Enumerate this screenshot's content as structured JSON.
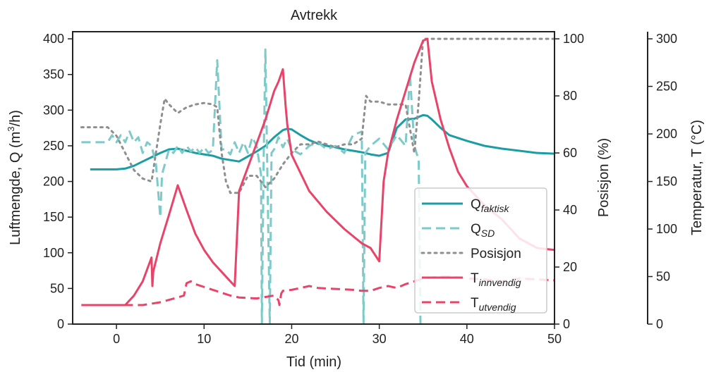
{
  "chart_data": {
    "type": "line",
    "title": "Avtrekk",
    "xlabel": "Tid (min)",
    "xlim": [
      -5,
      50
    ],
    "x_ticks": [
      0,
      10,
      20,
      30,
      40,
      50
    ],
    "axes": {
      "left": {
        "label_parts": [
          "Luftmengde, Q (m",
          "3",
          "/h)"
        ],
        "ylim": [
          0,
          410
        ],
        "ticks": [
          0,
          50,
          100,
          150,
          200,
          250,
          300,
          350,
          400
        ],
        "color": "#7ecac9"
      },
      "right1": {
        "label": "Posisjon (%)",
        "ylim": [
          0,
          102.5
        ],
        "ticks": [
          0,
          20,
          40,
          60,
          80,
          100
        ],
        "color": "#8f8f8f"
      },
      "right2": {
        "label": "Temperatur, T (°C)",
        "ylim": [
          0,
          307.5
        ],
        "ticks": [
          0,
          50,
          100,
          150,
          200,
          250,
          300
        ],
        "color": "#e8446a"
      }
    },
    "series": [
      {
        "name": "Q_faktisk",
        "label_main": "Q",
        "label_sub": "faktisk",
        "axis": "left",
        "color": "#1a9ea3",
        "style": "solid",
        "points": [
          [
            -3,
            217
          ],
          [
            0,
            217
          ],
          [
            1,
            218
          ],
          [
            2,
            222
          ],
          [
            3,
            228
          ],
          [
            4,
            234
          ],
          [
            5,
            240
          ],
          [
            6,
            245
          ],
          [
            7,
            246
          ],
          [
            8,
            243
          ],
          [
            9,
            240
          ],
          [
            10,
            238
          ],
          [
            11,
            236
          ],
          [
            12,
            232
          ],
          [
            13,
            230
          ],
          [
            14,
            228
          ],
          [
            15,
            235
          ],
          [
            16,
            242
          ],
          [
            17,
            250
          ],
          [
            18,
            262
          ],
          [
            19,
            272
          ],
          [
            19.5,
            274
          ],
          [
            20,
            273
          ],
          [
            21,
            265
          ],
          [
            22,
            258
          ],
          [
            23,
            253
          ],
          [
            24,
            250
          ],
          [
            25,
            248
          ],
          [
            26,
            245
          ],
          [
            27,
            243
          ],
          [
            28,
            241
          ],
          [
            29,
            238
          ],
          [
            30,
            236
          ],
          [
            31,
            240
          ],
          [
            32,
            275
          ],
          [
            33,
            287
          ],
          [
            34,
            288
          ],
          [
            35,
            293
          ],
          [
            35.5,
            292
          ],
          [
            36,
            287
          ],
          [
            37,
            275
          ],
          [
            38,
            265
          ],
          [
            40,
            257
          ],
          [
            42,
            250
          ],
          [
            44,
            246
          ],
          [
            46,
            243
          ],
          [
            48,
            240
          ],
          [
            50,
            239
          ]
        ]
      },
      {
        "name": "Q_SD",
        "label_main": "Q",
        "label_sub": "SD",
        "axis": "left",
        "color": "#7ecac9",
        "style": "dashed",
        "points": [
          [
            -4,
            255
          ],
          [
            -1,
            255
          ],
          [
            -0.5,
            265
          ],
          [
            0,
            255
          ],
          [
            0.5,
            265
          ],
          [
            1,
            255
          ],
          [
            1.5,
            270
          ],
          [
            2,
            255
          ],
          [
            2.5,
            262
          ],
          [
            3,
            240
          ],
          [
            3.5,
            255
          ],
          [
            4,
            250
          ],
          [
            4.5,
            225
          ],
          [
            5,
            150
          ],
          [
            5.2,
            210
          ],
          [
            6,
            245
          ],
          [
            6.5,
            240
          ],
          [
            7,
            250
          ],
          [
            7.5,
            240
          ],
          [
            8,
            250
          ],
          [
            8.5,
            242
          ],
          [
            9,
            248
          ],
          [
            9.5,
            240
          ],
          [
            10,
            248
          ],
          [
            10.5,
            240
          ],
          [
            11,
            244
          ],
          [
            11.5,
            370
          ],
          [
            12,
            245
          ],
          [
            12.5,
            245
          ],
          [
            13,
            238
          ],
          [
            13.5,
            255
          ],
          [
            14,
            240
          ],
          [
            14.5,
            255
          ],
          [
            15,
            240
          ],
          [
            15.5,
            262
          ],
          [
            16,
            250
          ],
          [
            16.5,
            210
          ],
          [
            16.6,
            0
          ],
          [
            16.8,
            230
          ],
          [
            17,
            385
          ],
          [
            17.2,
            230
          ],
          [
            17.5,
            0
          ],
          [
            17.7,
            240
          ],
          [
            18,
            245
          ],
          [
            18.5,
            262
          ],
          [
            19,
            248
          ],
          [
            19.5,
            260
          ],
          [
            20,
            245
          ],
          [
            21,
            238
          ],
          [
            22,
            250
          ],
          [
            23,
            255
          ],
          [
            24,
            245
          ],
          [
            25,
            250
          ],
          [
            26,
            240
          ],
          [
            27,
            265
          ],
          [
            28,
            270
          ],
          [
            28.2,
            0
          ],
          [
            28.4,
            240
          ],
          [
            29,
            250
          ],
          [
            30,
            260
          ],
          [
            31,
            245
          ],
          [
            32,
            265
          ],
          [
            33,
            250
          ],
          [
            33.5,
            350
          ],
          [
            34,
            250
          ],
          [
            34.5,
            230
          ],
          [
            34.7,
            0
          ]
        ]
      },
      {
        "name": "Posisjon",
        "label_main": "Posisjon",
        "label_sub": "",
        "axis": "right1",
        "color": "#8f8f8f",
        "style": "dotted",
        "points": [
          [
            -4,
            69
          ],
          [
            -1,
            69
          ],
          [
            0,
            66
          ],
          [
            1,
            60
          ],
          [
            2,
            54
          ],
          [
            3,
            51
          ],
          [
            4,
            50
          ],
          [
            5,
            70
          ],
          [
            5.5,
            79
          ],
          [
            6,
            77
          ],
          [
            7,
            74
          ],
          [
            8,
            76
          ],
          [
            9,
            77
          ],
          [
            10,
            77.5
          ],
          [
            11,
            77
          ],
          [
            11.5,
            76
          ],
          [
            12,
            60
          ],
          [
            12.5,
            50
          ],
          [
            13,
            46
          ],
          [
            14,
            46
          ],
          [
            15,
            52
          ],
          [
            16,
            52
          ],
          [
            17,
            48
          ],
          [
            18,
            51
          ],
          [
            19,
            56
          ],
          [
            20,
            60
          ],
          [
            21,
            63
          ],
          [
            22,
            63
          ],
          [
            23,
            64
          ],
          [
            24,
            63
          ],
          [
            25,
            62
          ],
          [
            26,
            63
          ],
          [
            27,
            63
          ],
          [
            28,
            65
          ],
          [
            28.5,
            80
          ],
          [
            29,
            78
          ],
          [
            30,
            78
          ],
          [
            31,
            77
          ],
          [
            32,
            77
          ],
          [
            33,
            77
          ],
          [
            34,
            60
          ],
          [
            34.5,
            78
          ],
          [
            35,
            100
          ],
          [
            50,
            100
          ]
        ]
      },
      {
        "name": "T_innvendig",
        "label_main": "T",
        "label_sub": "innvendig",
        "axis": "right2",
        "color": "#e8446a",
        "style": "solid",
        "points": [
          [
            -4,
            20
          ],
          [
            1,
            20
          ],
          [
            2,
            30
          ],
          [
            3,
            45
          ],
          [
            4,
            70
          ],
          [
            4.1,
            40
          ],
          [
            4.2,
            55
          ],
          [
            5,
            85
          ],
          [
            6,
            115
          ],
          [
            7,
            146
          ],
          [
            8,
            120
          ],
          [
            9,
            95
          ],
          [
            10,
            78
          ],
          [
            11,
            65
          ],
          [
            12,
            55
          ],
          [
            13,
            45
          ],
          [
            13.5,
            40
          ],
          [
            14,
            140
          ],
          [
            15,
            165
          ],
          [
            16,
            190
          ],
          [
            17,
            215
          ],
          [
            18,
            245
          ],
          [
            18.5,
            255
          ],
          [
            19,
            268
          ],
          [
            19.3,
            230
          ],
          [
            19.5,
            210
          ],
          [
            20,
            178
          ],
          [
            22,
            140
          ],
          [
            24,
            118
          ],
          [
            26,
            100
          ],
          [
            28,
            85
          ],
          [
            29,
            80
          ],
          [
            30,
            66
          ],
          [
            30.5,
            150
          ],
          [
            31,
            180
          ],
          [
            32,
            215
          ],
          [
            33,
            245
          ],
          [
            34,
            275
          ],
          [
            35,
            298
          ],
          [
            35.5,
            300
          ],
          [
            36,
            255
          ],
          [
            37,
            215
          ],
          [
            38,
            185
          ],
          [
            39,
            160
          ],
          [
            40,
            145
          ],
          [
            42,
            125
          ],
          [
            44,
            110
          ],
          [
            46,
            90
          ],
          [
            48,
            80
          ],
          [
            50,
            78
          ]
        ]
      },
      {
        "name": "T_utvendig",
        "label_main": "T",
        "label_sub": "utvendig",
        "axis": "right2",
        "color": "#e8446a",
        "style": "dashed",
        "points": [
          [
            -4,
            20
          ],
          [
            0,
            20
          ],
          [
            3,
            20
          ],
          [
            5,
            23
          ],
          [
            7,
            28
          ],
          [
            7.7,
            30
          ],
          [
            8,
            43
          ],
          [
            8.5,
            45
          ],
          [
            9,
            42
          ],
          [
            11,
            36
          ],
          [
            13,
            30
          ],
          [
            14,
            28
          ],
          [
            16,
            27
          ],
          [
            18,
            30
          ],
          [
            18.5,
            25
          ],
          [
            18.6,
            20
          ],
          [
            18.8,
            32
          ],
          [
            19,
            35
          ],
          [
            20,
            36
          ],
          [
            21,
            38
          ],
          [
            22,
            40
          ],
          [
            23,
            38
          ],
          [
            25,
            37
          ],
          [
            27,
            36
          ],
          [
            28,
            35
          ],
          [
            29,
            35
          ],
          [
            30,
            38
          ],
          [
            31,
            40
          ],
          [
            32,
            38
          ],
          [
            33,
            42
          ],
          [
            34,
            45
          ],
          [
            35,
            48
          ],
          [
            37,
            50
          ],
          [
            38,
            50
          ],
          [
            40,
            48
          ],
          [
            42,
            47
          ],
          [
            44,
            45
          ],
          [
            46,
            48
          ],
          [
            48,
            47
          ],
          [
            50,
            46
          ]
        ]
      }
    ],
    "legend_position": "lower-right",
    "grid": false
  }
}
